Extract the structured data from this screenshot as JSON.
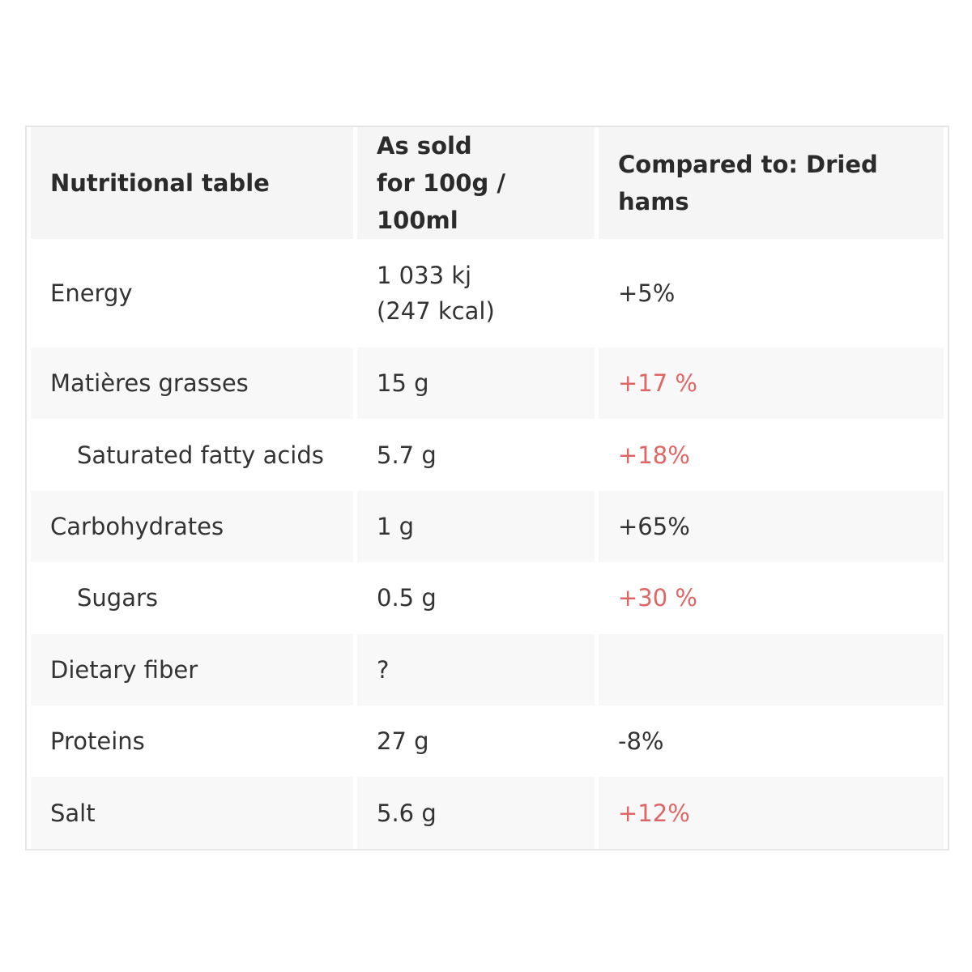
{
  "header": {
    "col1": "Nutritional table",
    "col2_line1": "As sold",
    "col2_line2": "for 100g / 100ml",
    "col3": "Compared to: Dried hams"
  },
  "rows": [
    {
      "name": "Energy",
      "value_line1": "1 033 kj",
      "value_line2": "(247 kcal)",
      "compare": "+5%",
      "compare_color": "#333333"
    },
    {
      "name": "Matières grasses",
      "value": "15 g",
      "compare": "+17 %",
      "compare_color": "#e06666"
    },
    {
      "name": "Saturated fatty acids",
      "value": "5.7 g",
      "compare": "+18%",
      "compare_color": "#e06666"
    },
    {
      "name": "Carbohydrates",
      "value": "1 g",
      "compare": "+65%",
      "compare_color": "#333333"
    },
    {
      "name": "Sugars",
      "value": "0.5 g",
      "compare": "+30 %",
      "compare_color": "#e06666"
    },
    {
      "name": "Dietary fiber",
      "value": "?",
      "compare": "",
      "compare_color": "#333333"
    },
    {
      "name": "Proteins",
      "value": "27 g",
      "compare": "-8%",
      "compare_color": "#333333"
    },
    {
      "name": "Salt",
      "value": "5.6 g",
      "compare": "+12%",
      "compare_color": "#e06666"
    }
  ]
}
